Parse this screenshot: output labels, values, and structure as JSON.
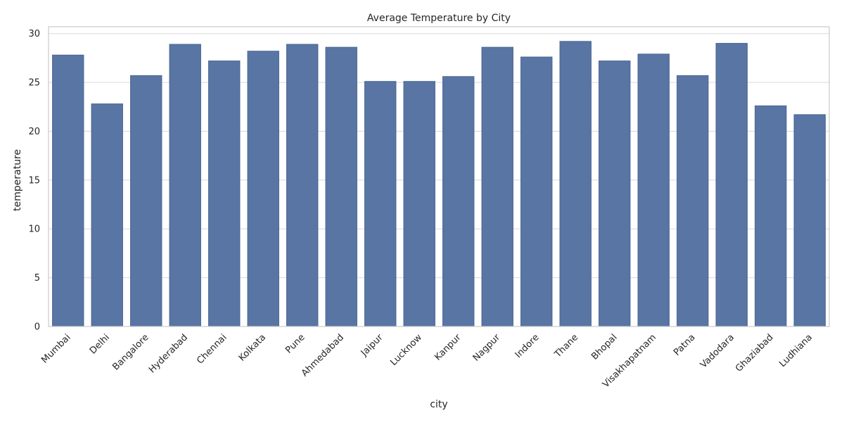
{
  "chart_data": {
    "type": "bar",
    "title": "Average Temperature by City",
    "xlabel": "city",
    "ylabel": "temperature",
    "categories": [
      "Mumbai",
      "Delhi",
      "Bangalore",
      "Hyderabad",
      "Chennai",
      "Kolkata",
      "Pune",
      "Ahmedabad",
      "Jaipur",
      "Lucknow",
      "Kanpur",
      "Nagpur",
      "Indore",
      "Thane",
      "Bhopal",
      "Visakhapatnam",
      "Patna",
      "Vadodara",
      "Ghaziabad",
      "Ludhiana"
    ],
    "values": [
      27.8,
      22.8,
      25.7,
      28.9,
      27.2,
      28.2,
      28.9,
      28.6,
      25.1,
      25.1,
      25.6,
      28.6,
      27.6,
      29.2,
      27.2,
      27.9,
      25.7,
      29.0,
      22.6,
      21.7
    ],
    "ylim": [
      0,
      30.7
    ],
    "yticks": [
      0,
      5,
      10,
      15,
      20,
      25,
      30
    ],
    "grid": "horizontal",
    "legend": "none",
    "bar_color": "#5975a4",
    "bar_edge_color": "#4a6794",
    "grid_color": "#d9d9d9",
    "spine_color": "#cccccc"
  }
}
